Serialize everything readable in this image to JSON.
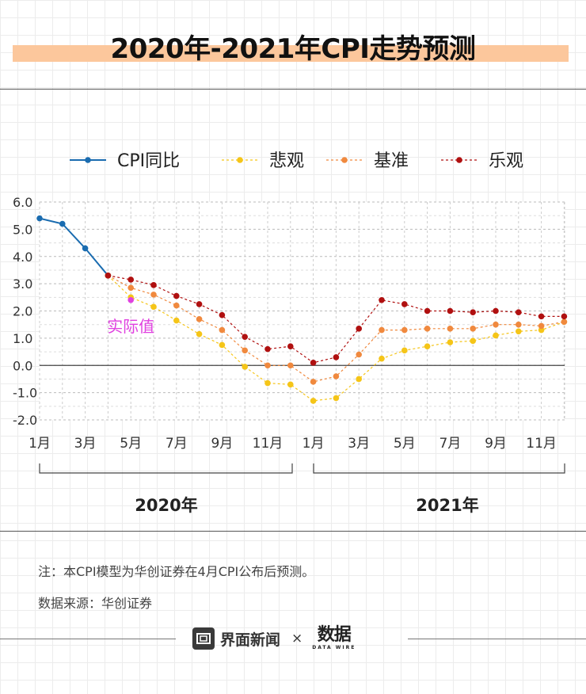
{
  "header": {
    "title": "2020年-2021年CPI走势预测"
  },
  "chart_data": {
    "type": "line",
    "x": [
      "2020-01",
      "2020-02",
      "2020-03",
      "2020-04",
      "2020-05",
      "2020-06",
      "2020-07",
      "2020-08",
      "2020-09",
      "2020-10",
      "2020-11",
      "2020-12",
      "2021-01",
      "2021-02",
      "2021-03",
      "2021-04",
      "2021-05",
      "2021-06",
      "2021-07",
      "2021-08",
      "2021-09",
      "2021-10",
      "2021-11",
      "2021-12"
    ],
    "x_tick_labels": [
      "1月",
      "3月",
      "5月",
      "7月",
      "9月",
      "11月",
      "1月",
      "3月",
      "5月",
      "7月",
      "9月",
      "11月"
    ],
    "y_tick_labels": [
      "6.0",
      "5.0",
      "4.0",
      "3.0",
      "2.0",
      "1.0",
      "0.0",
      "-1.0",
      "-2.0"
    ],
    "ylim": [
      -2.0,
      6.0
    ],
    "year_labels": [
      "2020年",
      "2021年"
    ],
    "legend_position": "top",
    "grid": true,
    "series": [
      {
        "name": "CPI同比",
        "color": "#1a6cb0",
        "style": "solid",
        "values": [
          5.4,
          5.2,
          4.3,
          3.3,
          null,
          null,
          null,
          null,
          null,
          null,
          null,
          null,
          null,
          null,
          null,
          null,
          null,
          null,
          null,
          null,
          null,
          null,
          null,
          null
        ]
      },
      {
        "name": "悲观",
        "color": "#f5c518",
        "style": "dashed",
        "values": [
          null,
          null,
          null,
          3.3,
          2.5,
          2.15,
          1.65,
          1.15,
          0.75,
          -0.05,
          -0.65,
          -0.7,
          -1.3,
          -1.2,
          -0.5,
          0.25,
          0.55,
          0.7,
          0.85,
          0.9,
          1.1,
          1.25,
          1.3,
          1.6
        ]
      },
      {
        "name": "基准",
        "color": "#f0893e",
        "style": "dashed",
        "values": [
          null,
          null,
          null,
          3.3,
          2.85,
          2.6,
          2.2,
          1.7,
          1.3,
          0.55,
          0.0,
          0.0,
          -0.6,
          -0.4,
          0.4,
          1.3,
          1.3,
          1.35,
          1.35,
          1.35,
          1.5,
          1.5,
          1.45,
          1.6
        ]
      },
      {
        "name": "乐观",
        "color": "#b01010",
        "style": "dashed",
        "values": [
          null,
          null,
          null,
          3.3,
          3.15,
          2.95,
          2.55,
          2.25,
          1.85,
          1.05,
          0.6,
          0.7,
          0.1,
          0.3,
          1.35,
          2.4,
          2.25,
          2.0,
          2.0,
          1.95,
          2.0,
          1.95,
          1.8,
          1.8
        ]
      }
    ],
    "annotations": [
      {
        "text": "实际值",
        "x": "2020-05",
        "y": 2.4,
        "color": "#e040e0"
      }
    ]
  },
  "notes": {
    "note": "注：本CPI模型为华创证券在4月CPI公布后预测。",
    "source": "数据来源：华创证券"
  },
  "footer": {
    "brand_name": "界面新闻",
    "separator": "×",
    "partner_name": "数据",
    "partner_tagline": "DATA WIRE"
  }
}
